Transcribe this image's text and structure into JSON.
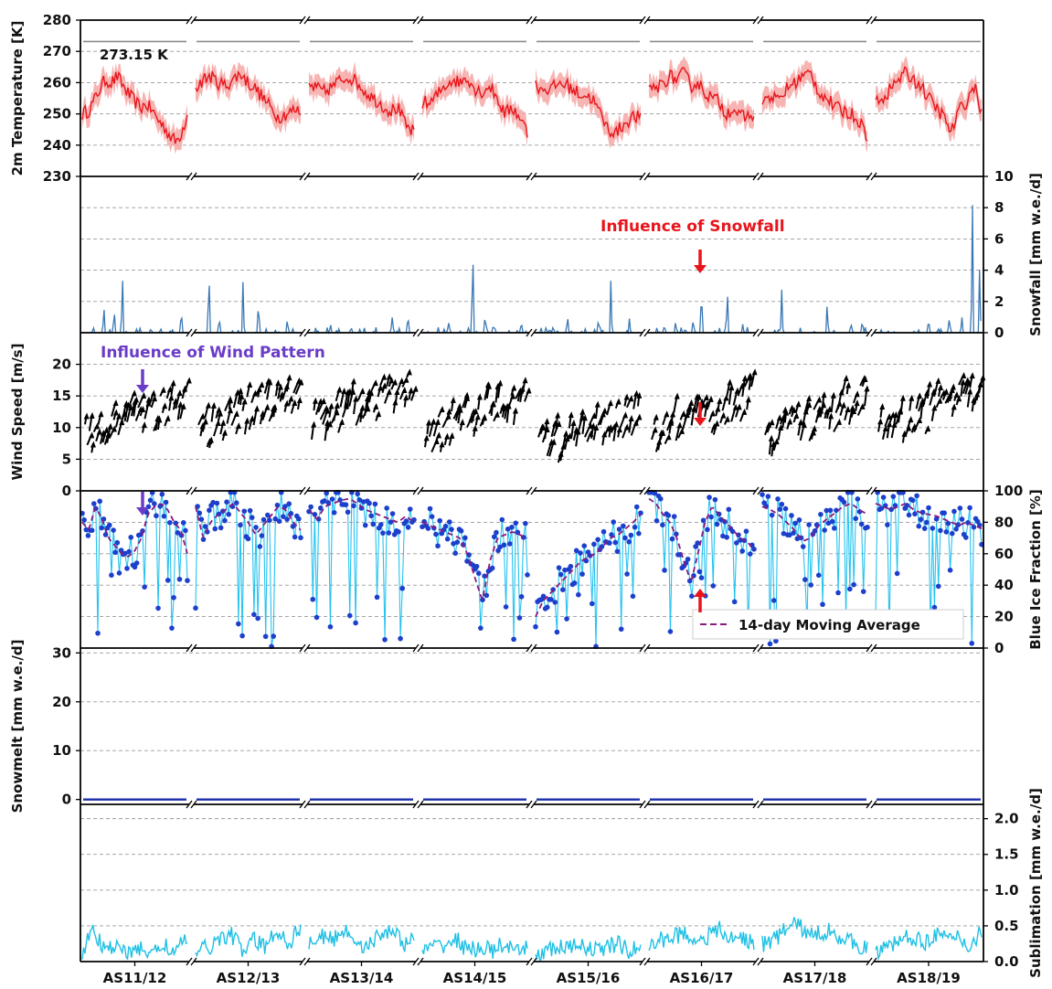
{
  "chart_data": {
    "type": "line",
    "x_label": "",
    "categories": [
      "AS11/12",
      "AS12/13",
      "AS13/14",
      "AS14/15",
      "AS15/16",
      "AS16/17",
      "AS17/18",
      "AS18/19"
    ],
    "panels": [
      {
        "id": "temperature",
        "ylabel": "2m Temperature [K]",
        "axis_side": "left",
        "ylim": [
          230,
          280
        ],
        "yticks": [
          "280",
          "270",
          "260",
          "250",
          "240",
          "230"
        ],
        "reference_line": {
          "value": 273.15,
          "label": "273.15 K"
        },
        "series": [
          {
            "color": "#e8141b",
            "band_color": "#f4a7a4",
            "values": [
              [
                250,
                251,
                254,
                258,
                261,
                260,
                262,
                259,
                256,
                254,
                252,
                253,
                251,
                248,
                246,
                243,
                241,
                244,
                250
              ],
              [
                258,
                261,
                262,
                260,
                259,
                261,
                263,
                260,
                258,
                255,
                252,
                249,
                250,
                251,
                251
              ],
              [
                259,
                258,
                257,
                259,
                261,
                262,
                260,
                257,
                255,
                253,
                251,
                252,
                246,
                244
              ],
              [
                254,
                253,
                256,
                259,
                261,
                260,
                262,
                258,
                257,
                259,
                255,
                250,
                252,
                249,
                244
              ],
              [
                259,
                258,
                258,
                260,
                259,
                257,
                256,
                255,
                250,
                245,
                244,
                247,
                249,
                249
              ],
              [
                257,
                258,
                260,
                262,
                261,
                263,
                259,
                260,
                257,
                255,
                254,
                250,
                252,
                249,
                249,
                250
              ],
              [
                254,
                256,
                254,
                258,
                260,
                262,
                263,
                257,
                255,
                252,
                251,
                250,
                248,
                243
              ],
              [
                255,
                255,
                258,
                261,
                263,
                261,
                259,
                255,
                252,
                249,
                244,
                251,
                254,
                259,
                251
              ]
            ]
          }
        ]
      },
      {
        "id": "snowfall",
        "ylabel": "Snowfall [mm w.e./d]",
        "axis_side": "right",
        "ylim": [
          0,
          10
        ],
        "yticks": [
          "10",
          "8",
          "6",
          "4",
          "2",
          "0"
        ],
        "series": [
          {
            "color": "#3a78b4",
            "peaks": [
              [
                [
                  0.2,
                  1.8
                ],
                [
                  0.3,
                  1.6
                ],
                [
                  0.38,
                  4.0
                ],
                [
                  0.55,
                  0.3
                ],
                [
                  0.75,
                  0.3
                ],
                [
                  0.95,
                  1.6
                ]
              ],
              [
                [
                  0.12,
                  4.3
                ],
                [
                  0.22,
                  1.1
                ],
                [
                  0.45,
                  3.4
                ],
                [
                  0.6,
                  2.2
                ],
                [
                  0.88,
                  1.0
                ]
              ],
              [
                [
                  0.2,
                  0.6
                ],
                [
                  0.4,
                  0.4
                ],
                [
                  0.8,
                  1.2
                ],
                [
                  0.95,
                  1.3
                ]
              ],
              [
                [
                  0.25,
                  0.8
                ],
                [
                  0.48,
                  5.9
                ],
                [
                  0.6,
                  1.3
                ],
                [
                  0.95,
                  0.8
                ]
              ],
              [
                [
                  0.3,
                  1.2
                ],
                [
                  0.6,
                  1.0
                ],
                [
                  0.72,
                  3.6
                ],
                [
                  0.9,
                  1.0
                ]
              ],
              [
                [
                  0.25,
                  0.8
                ],
                [
                  0.42,
                  1.0
                ],
                [
                  0.5,
                  3.1
                ],
                [
                  0.75,
                  3.0
                ],
                [
                  0.9,
                  0.6
                ]
              ],
              [
                [
                  0.18,
                  2.8
                ],
                [
                  0.62,
                  2.0
                ],
                [
                  0.85,
                  0.7
                ],
                [
                  0.96,
                  0.9
                ]
              ],
              [
                [
                  0.5,
                  1.0
                ],
                [
                  0.7,
                  1.1
                ],
                [
                  0.82,
                  1.0
                ],
                [
                  0.92,
                  9.2
                ],
                [
                  0.99,
                  4.5
                ]
              ]
            ]
          }
        ]
      },
      {
        "id": "wind",
        "ylabel": "Wind Speed [m/s]",
        "axis_side": "left",
        "ylim": [
          0,
          25
        ],
        "yticks": [
          "20",
          "15",
          "10",
          "5",
          "0"
        ],
        "series": [
          {
            "color": "#000000",
            "kind": "arrow-field"
          }
        ]
      },
      {
        "id": "blueice",
        "ylabel": "Blue Ice Fraction [%]",
        "axis_side": "right",
        "ylim": [
          0,
          100
        ],
        "yticks": [
          "100",
          "80",
          "60",
          "40",
          "20",
          "0"
        ],
        "series": [
          {
            "name": "daily",
            "color": "#27c3ef",
            "marker_color": "#1c3fcc",
            "values": [
              [
                80,
                75,
                90,
                82,
                70,
                65,
                60,
                58,
                62,
                70,
                85,
                90,
                92,
                88,
                80,
                75,
                60
              ],
              [
                90,
                70,
                80,
                85,
                88,
                92,
                86,
                80,
                72,
                78,
                84,
                90,
                88,
                80,
                75
              ],
              [
                88,
                82,
                90,
                92,
                94,
                95,
                92,
                88,
                86,
                84,
                82,
                80,
                84,
                80
              ],
              [
                80,
                78,
                76,
                74,
                72,
                70,
                60,
                45,
                30,
                55,
                70,
                72,
                74,
                72,
                70
              ],
              [
                20,
                30,
                35,
                40,
                45,
                50,
                55,
                58,
                60,
                65,
                70,
                72,
                76,
                80,
                85
              ],
              [
                95,
                92,
                85,
                80,
                70,
                55,
                42,
                60,
                80,
                90,
                85,
                80,
                75,
                70,
                68,
                62
              ],
              [
                90,
                88,
                85,
                80,
                75,
                68,
                70,
                78,
                82,
                86,
                90,
                92,
                88,
                85
              ],
              [
                92,
                90,
                88,
                90,
                92,
                88,
                86,
                85,
                84,
                82,
                80,
                78,
                80,
                78,
                76
              ]
            ]
          },
          {
            "name": "14-day Moving Average",
            "color": "#8b1a7c"
          }
        ],
        "legend": {
          "label": "14-day Moving Average",
          "position": "bottom-right"
        }
      },
      {
        "id": "snowmelt",
        "ylabel": "Snowmelt [mm w.e./d]",
        "axis_side": "left",
        "ylim": [
          -1,
          31
        ],
        "yticks": [
          "30",
          "20",
          "10",
          "0"
        ],
        "series": [
          {
            "color": "#1b2ea8",
            "constant": 0
          }
        ]
      },
      {
        "id": "sublimation",
        "ylabel": "Sublimation [mm w.e./d]",
        "axis_side": "right",
        "ylim": [
          0,
          2.2
        ],
        "yticks": [
          "2.0",
          "1.5",
          "1.0",
          "0.5",
          "0.0"
        ],
        "series": [
          {
            "color": "#1fc0e4",
            "values": [
              [
                0.15,
                0.45,
                0.1,
                0.3,
                0.08,
                0.2,
                0.1,
                0.25,
                0.12,
                0.35
              ],
              [
                0.1,
                0.2,
                0.3,
                0.4,
                0.15,
                0.3,
                0.2,
                0.45,
                0.25,
                0.5
              ],
              [
                0.25,
                0.35,
                0.3,
                0.45,
                0.3,
                0.2,
                0.35,
                0.48,
                0.25,
                0.3
              ],
              [
                0.15,
                0.2,
                0.25,
                0.3,
                0.15,
                0.2,
                0.15,
                0.25,
                0.1,
                0.2
              ],
              [
                0.1,
                0.15,
                0.2,
                0.18,
                0.25,
                0.15,
                0.2,
                0.25,
                0.15,
                0.2
              ],
              [
                0.2,
                0.3,
                0.35,
                0.4,
                0.3,
                0.35,
                0.45,
                0.3,
                0.35,
                0.25
              ],
              [
                0.25,
                0.3,
                0.45,
                0.55,
                0.35,
                0.4,
                0.45,
                0.3,
                0.25,
                0.2
              ],
              [
                0.1,
                0.2,
                0.3,
                0.35,
                0.25,
                0.4,
                0.3,
                0.35,
                0.2,
                0.45
              ]
            ]
          }
        ]
      }
    ],
    "annotations": [
      {
        "text": "Influence of Snowfall",
        "color": "#e8141b"
      },
      {
        "text": "Influence of Wind Pattern",
        "color": "#6a3cc8"
      }
    ],
    "grid": true
  }
}
